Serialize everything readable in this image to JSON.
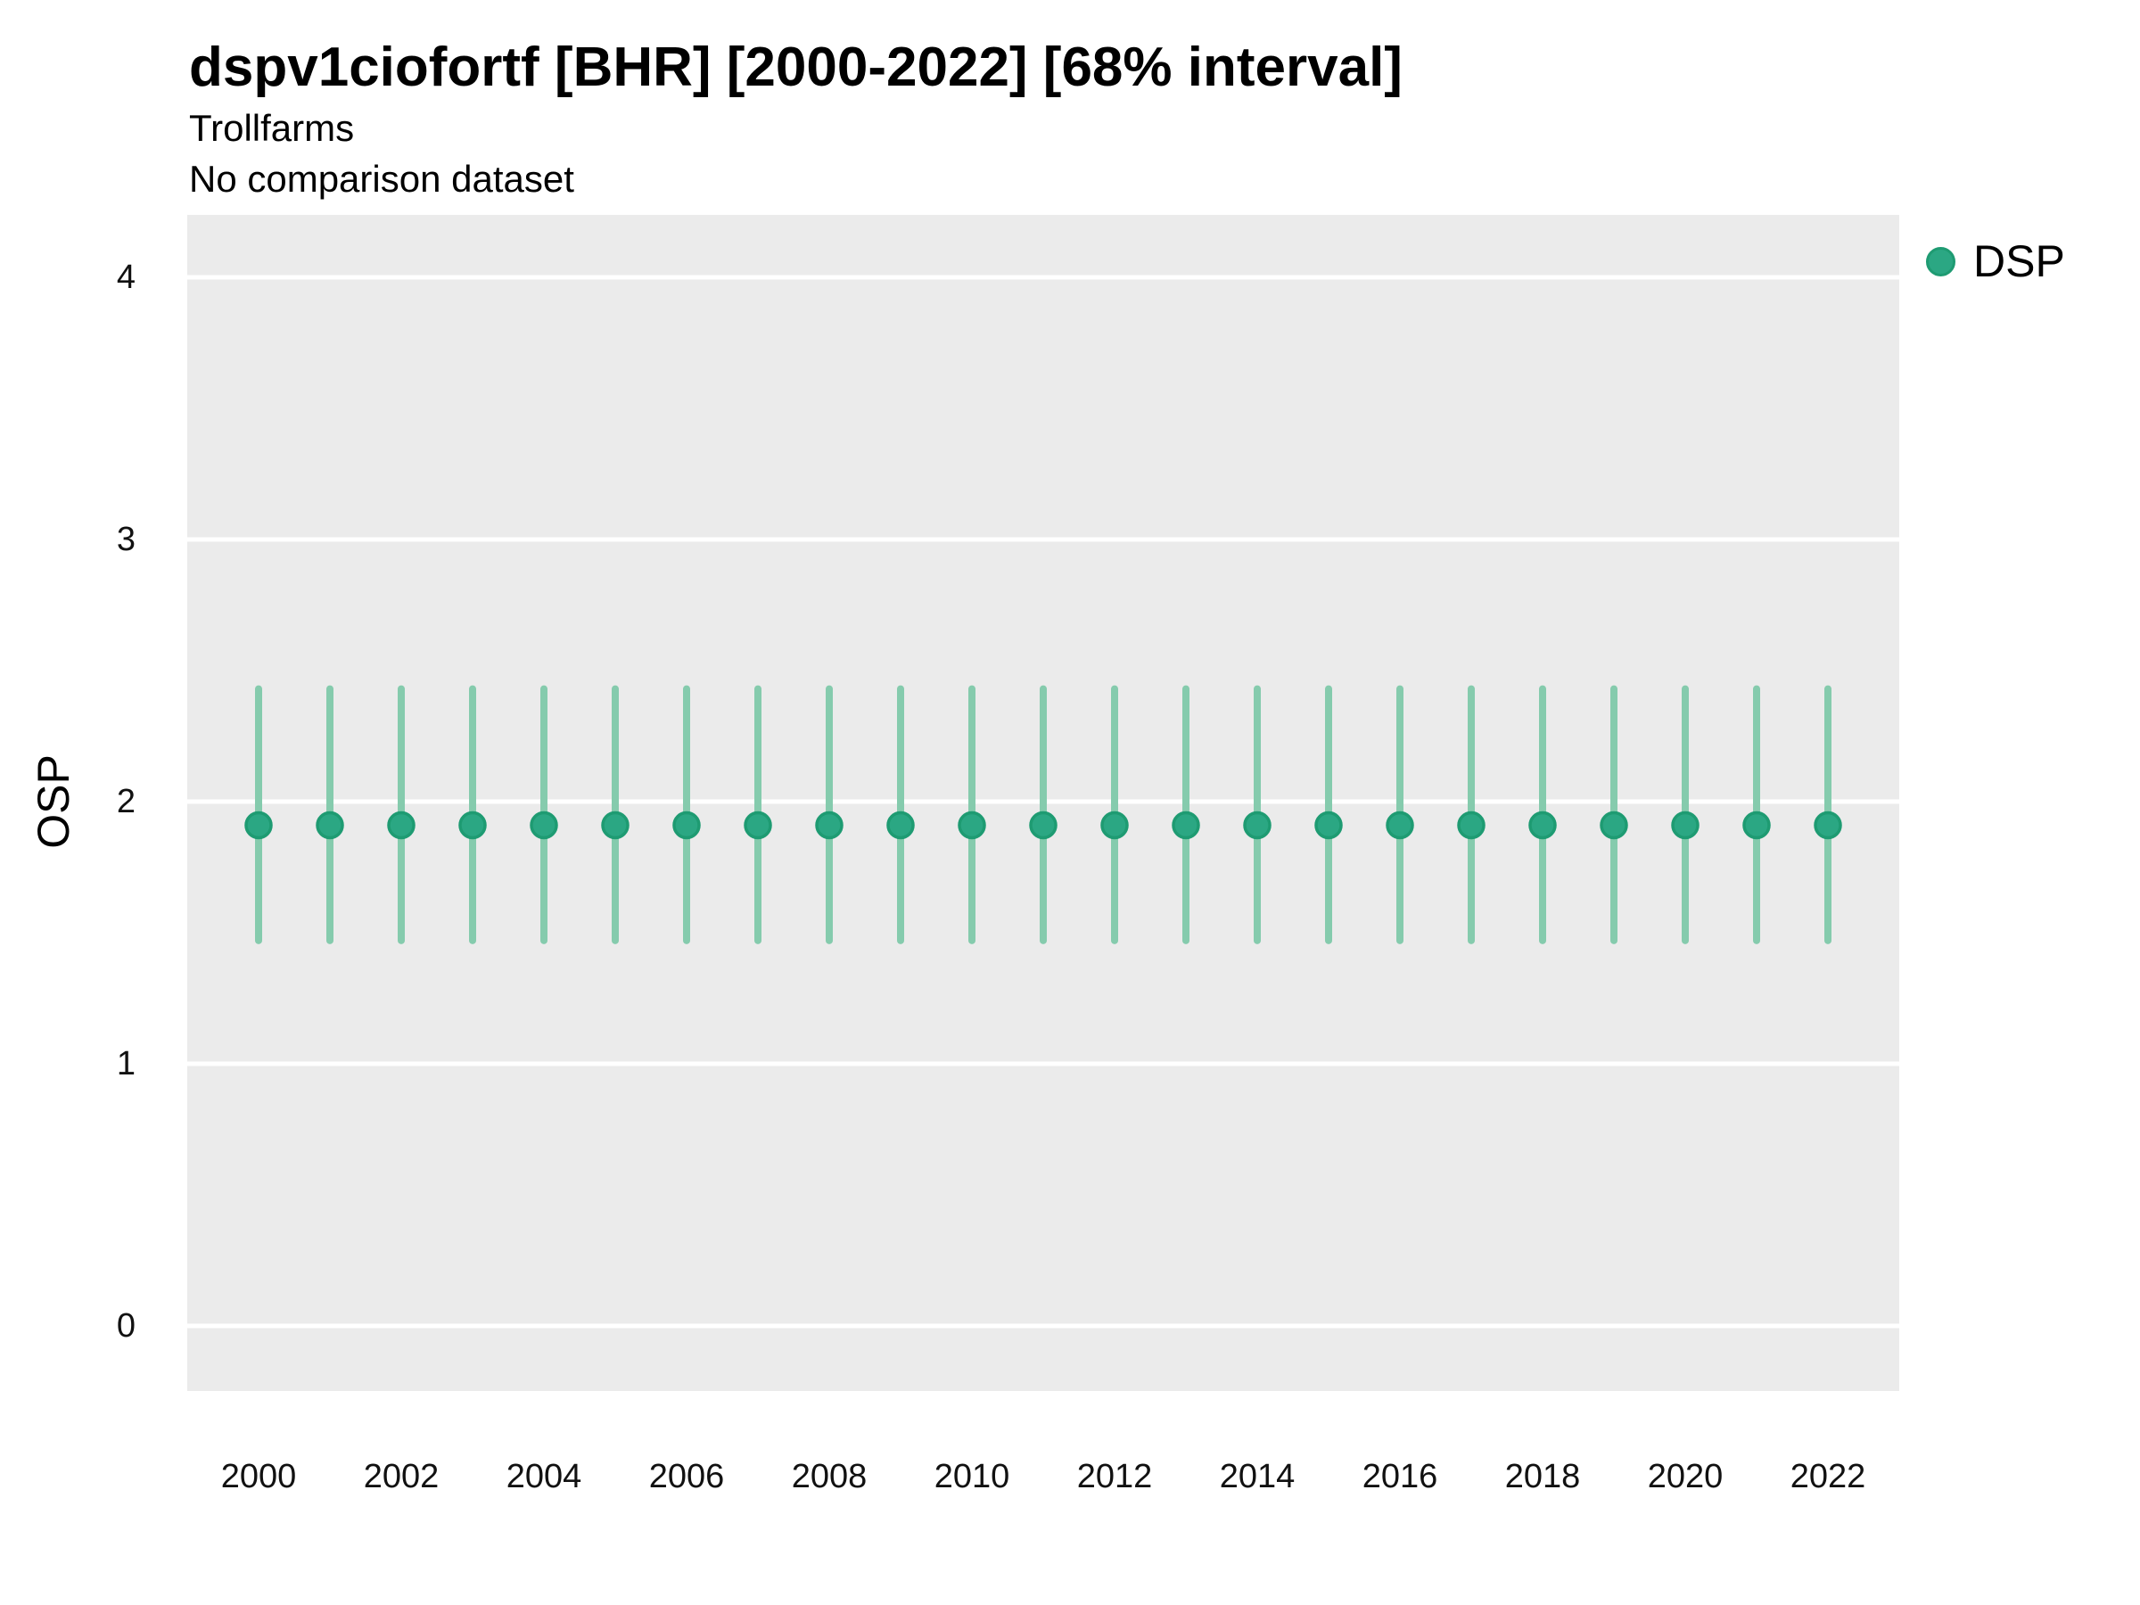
{
  "colors": {
    "marker": "#2BA783",
    "marker_stroke": "#1E9B72",
    "errorbar": "#85CBAD",
    "panel_bg": "#EBEBEB",
    "grid": "#FFFFFF",
    "text": "#000000"
  },
  "legend": {
    "position": "right",
    "items": [
      {
        "label": "DSP",
        "swatch": "circle"
      }
    ]
  },
  "chart_data": {
    "type": "scatter",
    "title": "dspv1ciofortf [BHR] [2000-2022] [68% interval]",
    "subtitle": "Trollfarms",
    "note": "No comparison dataset",
    "xlabel": "",
    "ylabel": "OSP",
    "ylim": [
      -0.25,
      4.24
    ],
    "yticks": [
      0,
      1,
      2,
      3,
      4
    ],
    "xticks": [
      2000,
      2002,
      2004,
      2006,
      2008,
      2010,
      2012,
      2014,
      2016,
      2018,
      2020,
      2022
    ],
    "grid": true,
    "legend_position": "right",
    "series": [
      {
        "name": "DSP",
        "x": [
          2000,
          2001,
          2002,
          2003,
          2004,
          2005,
          2006,
          2007,
          2008,
          2009,
          2010,
          2011,
          2012,
          2013,
          2014,
          2015,
          2016,
          2017,
          2018,
          2019,
          2020,
          2021,
          2022
        ],
        "y": [
          1.91,
          1.91,
          1.91,
          1.91,
          1.91,
          1.91,
          1.91,
          1.91,
          1.91,
          1.91,
          1.91,
          1.91,
          1.91,
          1.91,
          1.91,
          1.91,
          1.91,
          1.91,
          1.91,
          1.91,
          1.91,
          1.91,
          1.91
        ],
        "y_lo": [
          1.47,
          1.47,
          1.47,
          1.47,
          1.47,
          1.47,
          1.47,
          1.47,
          1.47,
          1.47,
          1.47,
          1.47,
          1.47,
          1.47,
          1.47,
          1.47,
          1.47,
          1.47,
          1.47,
          1.47,
          1.47,
          1.47,
          1.47
        ],
        "y_hi": [
          2.43,
          2.43,
          2.43,
          2.43,
          2.43,
          2.43,
          2.43,
          2.43,
          2.43,
          2.43,
          2.43,
          2.43,
          2.43,
          2.43,
          2.43,
          2.43,
          2.43,
          2.43,
          2.43,
          2.43,
          2.43,
          2.43,
          2.43
        ]
      }
    ]
  }
}
